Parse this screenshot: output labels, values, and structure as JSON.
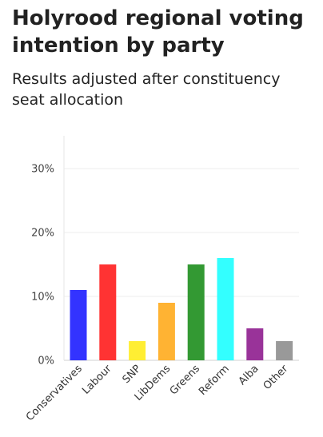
{
  "title": "Holyrood regional voting intention by party",
  "subtitle": "Results adjusted after constituency seat allocation",
  "chart_data": {
    "type": "bar",
    "title": "",
    "xlabel": "",
    "ylabel": "",
    "categories": [
      "Conservatives",
      "Labour",
      "SNP",
      "LibDems",
      "Greens",
      "Reform",
      "Alba",
      "Other"
    ],
    "values": [
      11,
      15,
      3,
      9,
      15,
      16,
      5,
      3
    ],
    "colors": [
      "#3333ff",
      "#ff3333",
      "#ffee33",
      "#ffb333",
      "#339933",
      "#33ffff",
      "#993399",
      "#999999"
    ],
    "unit": "%",
    "ylim": [
      0,
      30
    ],
    "yticks": [
      0,
      10,
      20,
      30
    ],
    "ytick_labels": [
      "0%",
      "10%",
      "20%",
      "30%"
    ],
    "grid": true,
    "legend": "none"
  }
}
